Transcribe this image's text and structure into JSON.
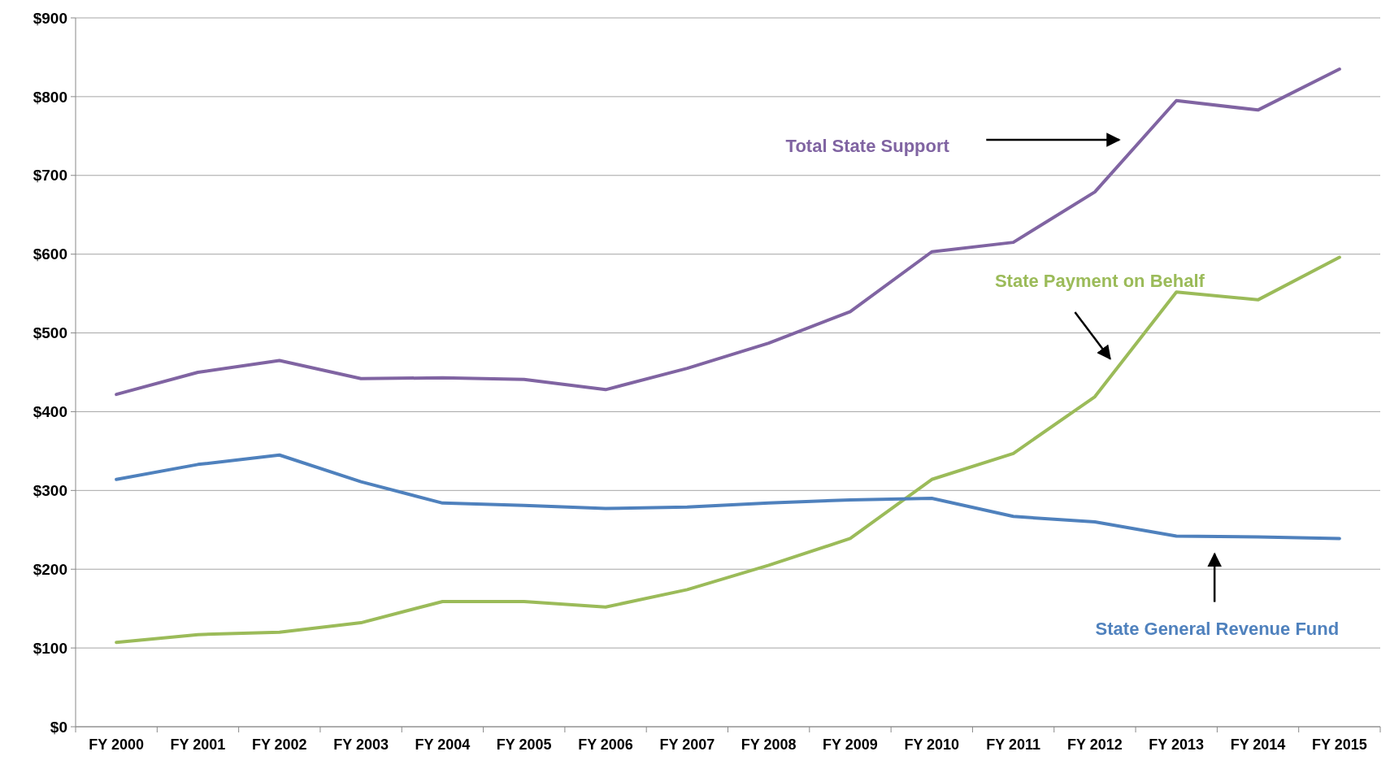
{
  "chart_data": {
    "type": "line",
    "categories": [
      "FY 2000",
      "FY 2001",
      "FY 2002",
      "FY 2003",
      "FY 2004",
      "FY 2005",
      "FY 2006",
      "FY 2007",
      "FY 2008",
      "FY 2009",
      "FY 2010",
      "FY 2011",
      "FY 2012",
      "FY 2013",
      "FY 2014",
      "FY 2015"
    ],
    "series": [
      {
        "name": "Total State Support",
        "color": "#8064a2",
        "values": [
          422,
          450,
          465,
          442,
          443,
          441,
          428,
          455,
          487,
          527,
          603,
          615,
          679,
          795,
          783,
          835
        ]
      },
      {
        "name": "State Payment on Behalf",
        "color": "#9bbb59",
        "values": [
          107,
          117,
          120,
          132,
          159,
          159,
          152,
          174,
          205,
          239,
          314,
          347,
          419,
          552,
          542,
          596
        ]
      },
      {
        "name": "State General Revenue Fund",
        "color": "#4f81bd",
        "values": [
          314,
          333,
          345,
          311,
          284,
          281,
          277,
          279,
          284,
          288,
          290,
          267,
          260,
          242,
          241,
          239
        ]
      }
    ],
    "ylim": [
      0,
      900
    ],
    "yticks": [
      {
        "value": 0,
        "label": "$0"
      },
      {
        "value": 100,
        "label": "$100"
      },
      {
        "value": 200,
        "label": "$200"
      },
      {
        "value": 300,
        "label": "$300"
      },
      {
        "value": 400,
        "label": "$400"
      },
      {
        "value": 500,
        "label": "$500"
      },
      {
        "value": 600,
        "label": "$600"
      },
      {
        "value": 700,
        "label": "$700"
      },
      {
        "value": 800,
        "label": "$800"
      },
      {
        "value": 900,
        "label": "$900"
      }
    ],
    "grid": "y",
    "legend": false,
    "marker": "none",
    "line_style": "solid"
  }
}
